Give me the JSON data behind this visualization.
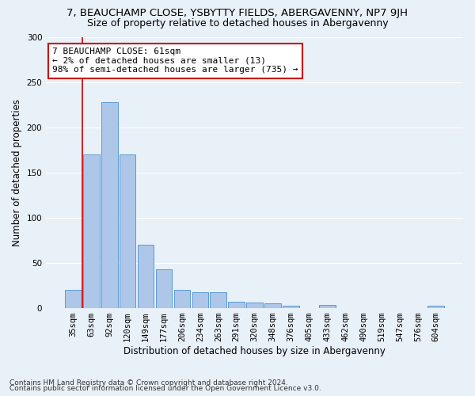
{
  "title1": "7, BEAUCHAMP CLOSE, YSBYTTY FIELDS, ABERGAVENNY, NP7 9JH",
  "title2": "Size of property relative to detached houses in Abergavenny",
  "xlabel": "Distribution of detached houses by size in Abergavenny",
  "ylabel": "Number of detached properties",
  "footnote1": "Contains HM Land Registry data © Crown copyright and database right 2024.",
  "footnote2": "Contains public sector information licensed under the Open Government Licence v3.0.",
  "bar_labels": [
    "35sqm",
    "63sqm",
    "92sqm",
    "120sqm",
    "149sqm",
    "177sqm",
    "206sqm",
    "234sqm",
    "263sqm",
    "291sqm",
    "320sqm",
    "348sqm",
    "376sqm",
    "405sqm",
    "433sqm",
    "462sqm",
    "490sqm",
    "519sqm",
    "547sqm",
    "576sqm",
    "604sqm"
  ],
  "bar_values": [
    20,
    170,
    228,
    170,
    70,
    43,
    20,
    18,
    18,
    7,
    6,
    5,
    3,
    0,
    4,
    0,
    0,
    0,
    0,
    0,
    3
  ],
  "bar_color": "#aec6e8",
  "bar_edge_color": "#5b9bd5",
  "vline_color": "#cc0000",
  "vline_x_index": 1,
  "annotation_text": "7 BEAUCHAMP CLOSE: 61sqm\n← 2% of detached houses are smaller (13)\n98% of semi-detached houses are larger (735) →",
  "annotation_box_color": "#ffffff",
  "annotation_box_edge_color": "#cc0000",
  "ylim": [
    0,
    300
  ],
  "yticks": [
    0,
    50,
    100,
    150,
    200,
    250,
    300
  ],
  "bg_color": "#e8f0f8",
  "grid_color": "#ffffff",
  "title1_fontsize": 9.5,
  "title2_fontsize": 9,
  "xlabel_fontsize": 8.5,
  "ylabel_fontsize": 8.5,
  "tick_fontsize": 7.5,
  "annot_fontsize": 8,
  "footnote_fontsize": 6.5
}
